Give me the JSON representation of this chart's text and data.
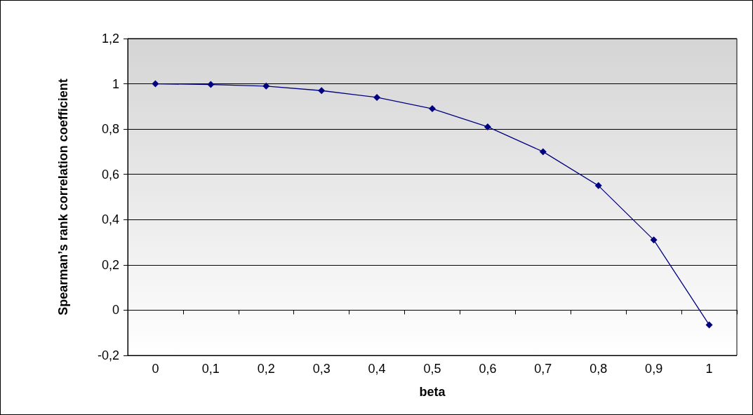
{
  "chart_data": {
    "type": "line",
    "xlabel": "beta",
    "ylabel": "Spearman’s rank correlation coefficient",
    "categories": [
      "0",
      "0,1",
      "0,2",
      "0,3",
      "0,4",
      "0,5",
      "0,6",
      "0,7",
      "0,8",
      "0,9",
      "1"
    ],
    "series": [
      {
        "color": "#000080",
        "values": [
          1.0,
          0.997,
          0.99,
          0.97,
          0.94,
          0.89,
          0.81,
          0.7,
          0.55,
          0.31,
          -0.065
        ]
      }
    ],
    "ylim": [
      -0.2,
      1.2
    ],
    "yticks": [
      {
        "value": -0.2,
        "label": "-0,2"
      },
      {
        "value": 0,
        "label": "0"
      },
      {
        "value": 0.2,
        "label": "0,2"
      },
      {
        "value": 0.4,
        "label": "0,4"
      },
      {
        "value": 0.6,
        "label": "0,6"
      },
      {
        "value": 0.8,
        "label": "0,8"
      },
      {
        "value": 1,
        "label": "1"
      },
      {
        "value": 1.2,
        "label": "1,2"
      }
    ],
    "grid": "y",
    "marker": "diamond",
    "line_style": "solid"
  }
}
